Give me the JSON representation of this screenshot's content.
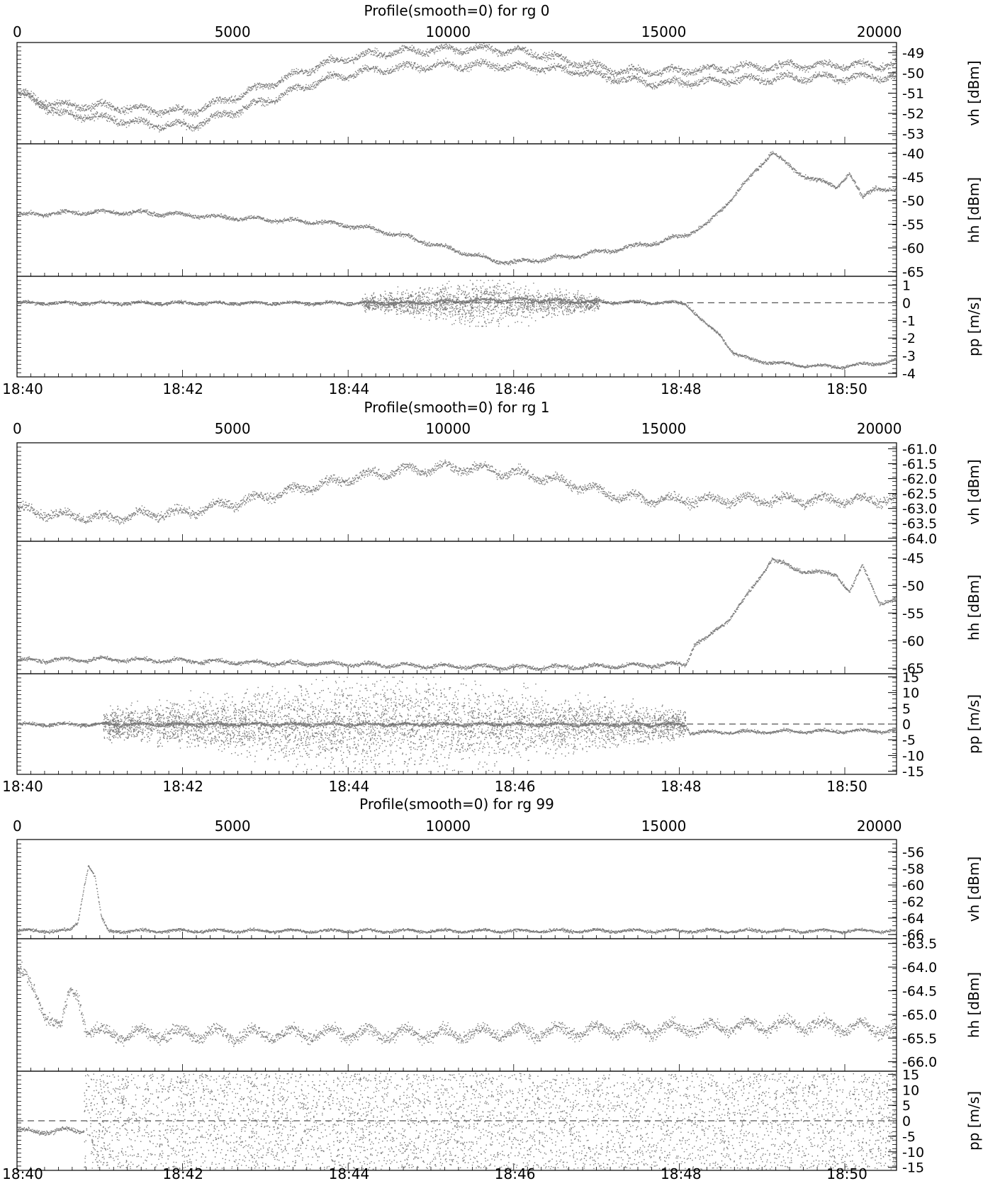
{
  "chart_data": [
    {
      "type": "scatter",
      "title": "Profile(smooth=0) for rg 0",
      "top_axis": {
        "ticks": [
          "0",
          "5000",
          "10000",
          "15000",
          "20000"
        ],
        "range": [
          0,
          20400
        ]
      },
      "bottom_axis": {
        "ticks": [
          "18:40",
          "18:42",
          "18:44",
          "18:46",
          "18:48",
          "18:50"
        ]
      },
      "panels": [
        {
          "ylabel": "vh [dBm]",
          "ylim": [
            -53.5,
            -48.5
          ],
          "ticks": [
            "-49",
            "-50",
            "-51",
            "-52",
            "-53"
          ],
          "tick_values": [
            -49,
            -50,
            -51,
            -52,
            -53
          ],
          "series": [
            {
              "x": [
                0,
                1000,
                2000,
                3000,
                4000,
                5000,
                6000,
                7000,
                8000,
                9000,
                10000,
                11000,
                12000,
                13000,
                14000,
                15000,
                16000,
                17000,
                18000,
                19000,
                20400
              ],
              "y": [
                -51.0,
                -52.0,
                -52.2,
                -52.5,
                -52.6,
                -51.9,
                -51.2,
                -50.4,
                -49.9,
                -49.7,
                -49.6,
                -49.6,
                -49.7,
                -49.9,
                -50.3,
                -50.5,
                -50.4,
                -50.3,
                -50.2,
                -50.2,
                -50.2
              ]
            },
            {
              "x": [
                0,
                1000,
                2000,
                3000,
                4000,
                5000,
                6000,
                7000,
                8000,
                9000,
                10000,
                11000,
                12000,
                13000,
                14000,
                15000,
                16000,
                17000,
                18000,
                19000,
                20400
              ],
              "y": [
                -51.0,
                -51.6,
                -51.6,
                -51.8,
                -51.9,
                -51.2,
                -50.4,
                -49.6,
                -49.1,
                -48.9,
                -48.8,
                -48.8,
                -49.0,
                -49.5,
                -49.9,
                -49.9,
                -49.8,
                -49.7,
                -49.6,
                -49.6,
                -49.6
              ]
            }
          ],
          "noise": 0.25,
          "scatter_count": 0
        },
        {
          "ylabel": "hh [dBm]",
          "ylim": [
            -66,
            -38
          ],
          "ticks": [
            "-40",
            "-45",
            "-50",
            "-55",
            "-60",
            "-65"
          ],
          "tick_values": [
            -40,
            -45,
            -50,
            -55,
            -60,
            -65
          ],
          "series": [
            {
              "x": [
                0,
                1000,
                2000,
                3000,
                4000,
                5000,
                6000,
                7000,
                8000,
                9000,
                10000,
                11000,
                11500,
                12000,
                13000,
                14000,
                15000,
                15500,
                16000,
                16500,
                17000,
                17500,
                18000,
                18500,
                19000,
                19300,
                19600,
                19900,
                20400
              ],
              "y": [
                -53.0,
                -52.5,
                -52.3,
                -52.5,
                -53.0,
                -53.5,
                -54.0,
                -54.5,
                -55.5,
                -57.5,
                -60.0,
                -62.5,
                -63.0,
                -62.5,
                -61.5,
                -60.0,
                -58.5,
                -57.0,
                -55.0,
                -50.0,
                -45.0,
                -39.5,
                -43.5,
                -45.5,
                -47.0,
                -44.0,
                -49.5,
                -47.0,
                -48.0
              ]
            }
          ],
          "noise": 0.6,
          "scatter_count": 0
        },
        {
          "ylabel": "pp [m/s]",
          "ylim": [
            -4.2,
            1.5
          ],
          "ticks": [
            "1",
            "0",
            "-1",
            "-2",
            "-3",
            "-4"
          ],
          "tick_values": [
            1,
            0,
            -1,
            -2,
            -3,
            -4
          ],
          "zero_line": 0,
          "series": [
            {
              "x": [
                0,
                5000,
                9000,
                10000,
                11000,
                12000,
                13000,
                15500,
                15700,
                16000,
                16300,
                16600,
                17000,
                18000,
                19000,
                20000,
                20400
              ],
              "y": [
                0,
                0,
                0,
                0.1,
                0.2,
                0.2,
                0.1,
                0.0,
                -0.5,
                -1.3,
                -1.8,
                -2.8,
                -3.2,
                -3.5,
                -3.6,
                -3.4,
                -3.2
              ]
            }
          ],
          "noise": 0.12,
          "scatter_count": 1800,
          "scatter_range": [
            8000,
            13500
          ],
          "scatter_y": [
            -1.3,
            1.3
          ]
        }
      ]
    },
    {
      "type": "scatter",
      "title": "Profile(smooth=0) for rg 1",
      "top_axis": {
        "ticks": [
          "0",
          "5000",
          "10000",
          "15000",
          "20000"
        ],
        "range": [
          0,
          20400
        ]
      },
      "bottom_axis": {
        "ticks": [
          "18:40",
          "18:42",
          "18:44",
          "18:46",
          "18:48",
          "18:50"
        ]
      },
      "panels": [
        {
          "ylabel": "vh [dBm]",
          "ylim": [
            -64.1,
            -60.8
          ],
          "ticks": [
            "-61.0",
            "-61.5",
            "-62.0",
            "-62.5",
            "-63.0",
            "-63.5",
            "-64.0"
          ],
          "tick_values": [
            -61.0,
            -61.5,
            -62.0,
            -62.5,
            -63.0,
            -63.5,
            -64.0
          ],
          "series": [
            {
              "x": [
                0,
                1000,
                2000,
                3000,
                4000,
                5000,
                6000,
                7000,
                8000,
                9000,
                10000,
                11000,
                12000,
                13000,
                14000,
                15000,
                16000,
                17000,
                18000,
                19000,
                20400
              ],
              "y": [
                -63.0,
                -63.2,
                -63.3,
                -63.2,
                -63.1,
                -62.8,
                -62.5,
                -62.2,
                -61.9,
                -61.7,
                -61.6,
                -61.7,
                -61.9,
                -62.2,
                -62.6,
                -62.7,
                -62.7,
                -62.7,
                -62.7,
                -62.7,
                -62.7
              ]
            }
          ],
          "noise": 0.22,
          "scatter_count": 0
        },
        {
          "ylabel": "hh [dBm]",
          "ylim": [
            -66,
            -42
          ],
          "ticks": [
            "-45",
            "-50",
            "-55",
            "-60",
            "-65"
          ],
          "tick_values": [
            -45,
            -50,
            -55,
            -60,
            -65
          ],
          "series": [
            {
              "x": [
                0,
                2000,
                4000,
                6000,
                8000,
                10000,
                12000,
                14000,
                15500,
                15700,
                16000,
                16500,
                17000,
                17500,
                18000,
                18500,
                19000,
                19300,
                19600,
                20000,
                20400
              ],
              "y": [
                -63.5,
                -63.3,
                -63.6,
                -64.0,
                -64.2,
                -64.6,
                -64.8,
                -64.5,
                -64.2,
                -60.5,
                -59.5,
                -56.0,
                -51.0,
                -45.0,
                -47.0,
                -47.5,
                -48.0,
                -51.0,
                -46.5,
                -53.0,
                -52.5
              ]
            }
          ],
          "noise": 0.5,
          "scatter_count": 0
        },
        {
          "ylabel": "pp [m/s]",
          "ylim": [
            -16,
            16
          ],
          "ticks": [
            "15",
            "10",
            "5",
            "0",
            "-5",
            "-10",
            "-15"
          ],
          "tick_values": [
            15,
            10,
            5,
            0,
            -5,
            -10,
            -15
          ],
          "zero_line": 0,
          "series": [
            {
              "x": [
                0,
                5000,
                10000,
                15500,
                15600,
                20400
              ],
              "y": [
                0,
                0,
                0,
                0,
                -2.5,
                -2.0
              ]
            }
          ],
          "noise": 0.7,
          "scatter_count": 5000,
          "scatter_range": [
            2000,
            15500
          ],
          "scatter_y": [
            -15,
            15
          ]
        }
      ]
    },
    {
      "type": "scatter",
      "title": "Profile(smooth=0) for rg 99",
      "top_axis": {
        "ticks": [
          "0",
          "5000",
          "10000",
          "15000",
          "20000"
        ],
        "range": [
          0,
          20400
        ]
      },
      "bottom_axis": {
        "ticks": [
          "18:40",
          "18:42",
          "18:44",
          "18:46",
          "18:48",
          "18:50"
        ]
      },
      "panels": [
        {
          "ylabel": "vh [dBm]",
          "ylim": [
            -66.5,
            -54.5
          ],
          "ticks": [
            "-56",
            "-58",
            "-60",
            "-62",
            "-64",
            "-66"
          ],
          "tick_values": [
            -56,
            -58,
            -60,
            -62,
            -64,
            -66
          ],
          "series": [
            {
              "x": [
                0,
                1200,
                1400,
                1550,
                1650,
                1800,
                1950,
                2100,
                20400
              ],
              "y": [
                -65.5,
                -65.5,
                -64.5,
                -60.0,
                -57.5,
                -59.0,
                -64.0,
                -65.5,
                -65.5
              ]
            }
          ],
          "noise": 0.25,
          "scatter_count": 0
        },
        {
          "ylabel": "hh [dBm]",
          "ylim": [
            -66.2,
            -63.4
          ],
          "ticks": [
            "-63.5",
            "-64.0",
            "-64.5",
            "-65.0",
            "-65.5",
            "-66.0"
          ],
          "tick_values": [
            -63.5,
            -64.0,
            -64.5,
            -65.0,
            -65.5,
            -66.0
          ],
          "series": [
            {
              "x": [
                0,
                300,
                700,
                1000,
                1200,
                1400,
                1600,
                2000,
                5000,
                10000,
                15000,
                18000,
                20400
              ],
              "y": [
                -64.0,
                -64.4,
                -65.0,
                -65.3,
                -64.6,
                -64.5,
                -65.3,
                -65.4,
                -65.4,
                -65.4,
                -65.3,
                -65.2,
                -65.3
              ]
            }
          ],
          "noise": 0.18,
          "scatter_count": 0
        },
        {
          "ylabel": "pp [m/s]",
          "ylim": [
            -16,
            16
          ],
          "ticks": [
            "15",
            "10",
            "5",
            "0",
            "-5",
            "-10",
            "-15"
          ],
          "tick_values": [
            15,
            10,
            5,
            0,
            -5,
            -10,
            -15
          ],
          "zero_line": 0,
          "series": [
            {
              "x": [
                0,
                500,
                1000,
                1500,
                1550
              ],
              "y": [
                -3.0,
                -3.5,
                -3.0,
                -3.0,
                -3.0
              ]
            }
          ],
          "noise": 1.0,
          "scatter_count": 9000,
          "scatter_range": [
            1550,
            20400
          ],
          "scatter_y": [
            -15.5,
            15.5
          ]
        }
      ]
    }
  ],
  "colors": {
    "data": "#7a7a7a",
    "axis": "#000000",
    "zero_line": "#555555"
  }
}
